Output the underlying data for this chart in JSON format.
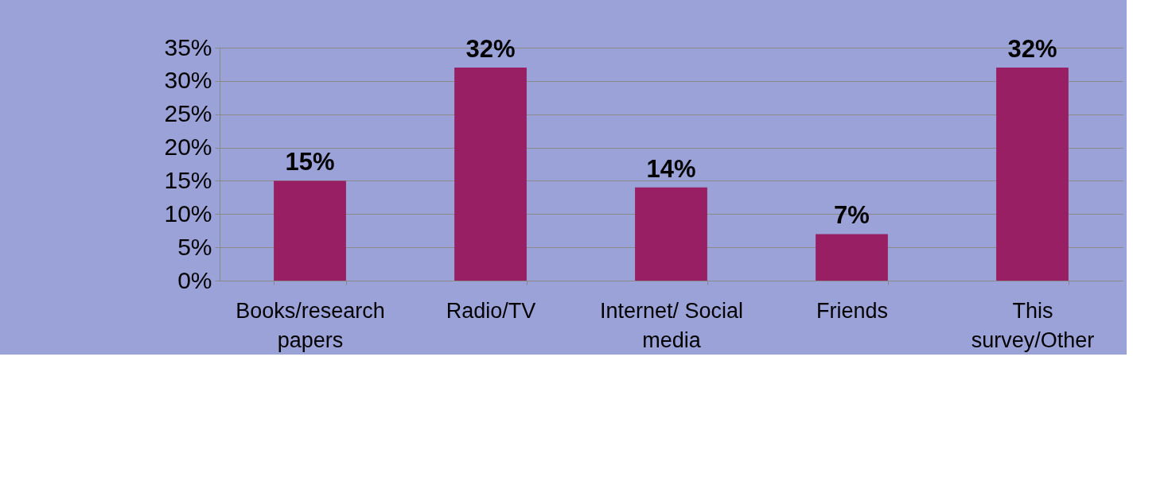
{
  "chart_data": {
    "type": "bar",
    "categories": [
      "Books/research\npapers",
      "Radio/TV",
      "Internet/ Social\nmedia",
      "Friends",
      "This\nsurvey/Other"
    ],
    "values": [
      15,
      32,
      14,
      7,
      32
    ],
    "color": "#981f64",
    "value_labels": [
      "15%",
      "32%",
      "14%",
      "7%",
      "32%"
    ],
    "ylim": [
      0,
      35
    ],
    "yticks": [
      {
        "value": 0,
        "label": "0%"
      },
      {
        "value": 5,
        "label": "5%"
      },
      {
        "value": 10,
        "label": "10%"
      },
      {
        "value": 15,
        "label": "15%"
      },
      {
        "value": 20,
        "label": "20%"
      },
      {
        "value": 25,
        "label": "25%"
      },
      {
        "value": 30,
        "label": "30%"
      },
      {
        "value": 35,
        "label": "35%"
      }
    ],
    "grid": "y"
  }
}
